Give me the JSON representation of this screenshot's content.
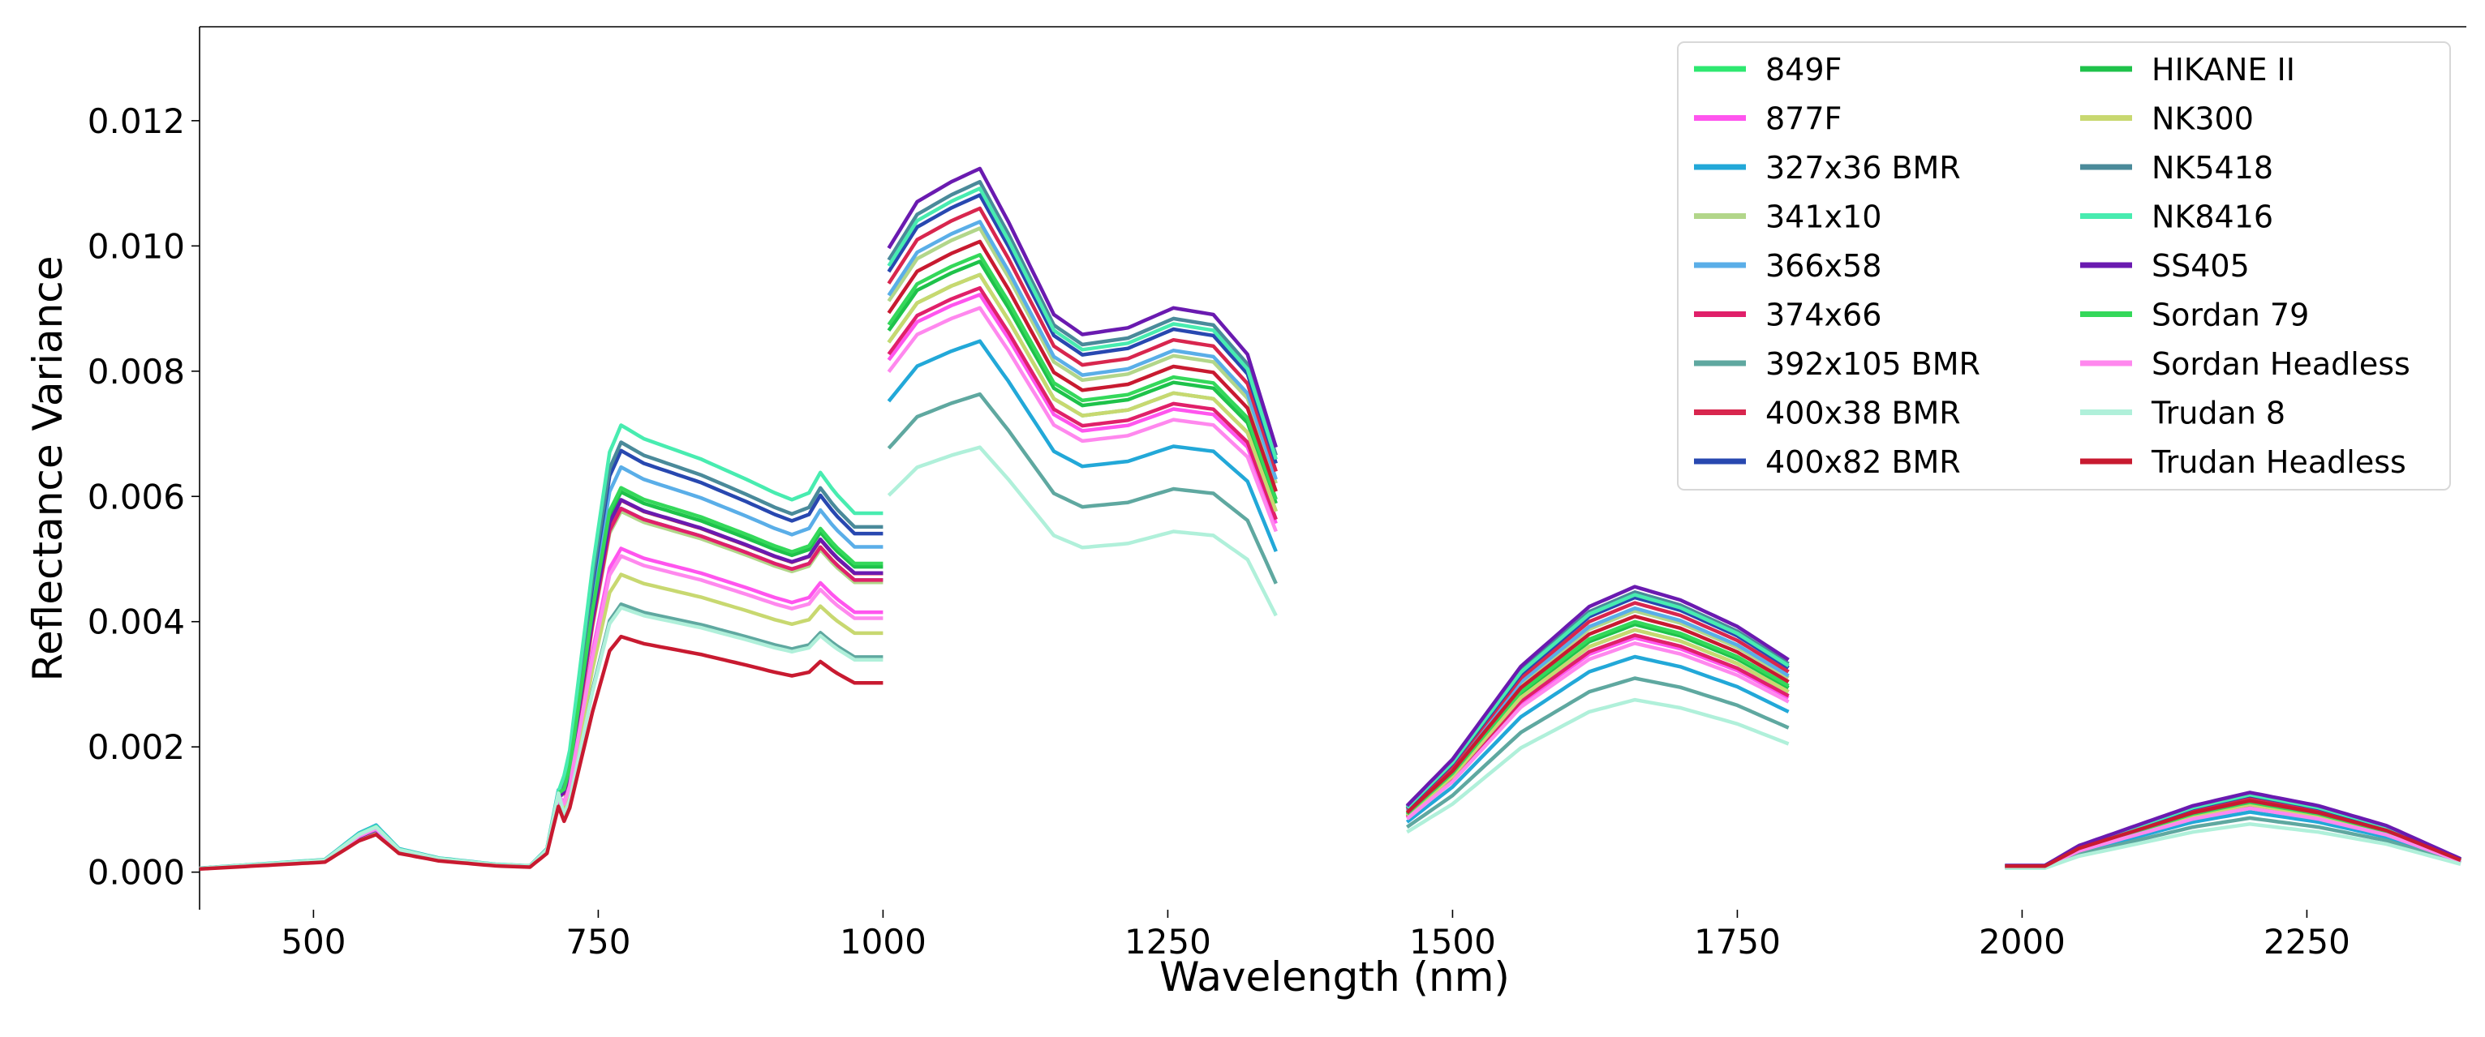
{
  "chart_data": {
    "type": "line",
    "xlabel": "Wavelength (nm)",
    "ylabel": "Reflectance Variance",
    "xlim": [
      400,
      2390
    ],
    "ylim": [
      -0.0006,
      0.0135
    ],
    "xticks": [
      500,
      750,
      1000,
      1250,
      1500,
      1750,
      2000,
      2250
    ],
    "yticks": [
      0.0,
      0.002,
      0.004,
      0.006,
      0.008,
      0.01,
      0.012
    ],
    "ytick_labels": [
      "0.000",
      "0.002",
      "0.004",
      "0.006",
      "0.008",
      "0.010",
      "0.012"
    ],
    "legend_position": "top-right",
    "legend_columns": 2,
    "segments": [
      [
        400,
        1000
      ],
      [
        1005,
        1345
      ],
      [
        1460,
        1795
      ],
      [
        1985,
        2385
      ]
    ],
    "series": [
      {
        "name": "849F",
        "color": "#2ee870",
        "level": 0.9,
        "vis": 1.0
      },
      {
        "name": "877F",
        "color": "#ff55ee",
        "level": 0.87,
        "vis": 0.9
      },
      {
        "name": "327x36 BMR",
        "color": "#22a8d8",
        "level": 0.8,
        "vis": 1.1
      },
      {
        "name": "341x10",
        "color": "#b2d68a",
        "level": 0.97,
        "vis": 0.9
      },
      {
        "name": "366x58",
        "color": "#5aaee8",
        "level": 0.98,
        "vis": 1.0
      },
      {
        "name": "374x66",
        "color": "#e0206a",
        "level": 0.88,
        "vis": 1.0
      },
      {
        "name": "392x105 BMR",
        "color": "#5fa8a0",
        "level": 0.72,
        "vis": 0.9
      },
      {
        "name": "400x38 BMR",
        "color": "#d8264e",
        "level": 1.0,
        "vis": 0.9
      },
      {
        "name": "400x82 BMR",
        "color": "#2848b0",
        "level": 1.02,
        "vis": 1.0
      },
      {
        "name": "HIKANE II",
        "color": "#1ec24a",
        "level": 0.92,
        "vis": 1.0
      },
      {
        "name": "NK300",
        "color": "#c8d870",
        "level": 0.9,
        "vis": 0.8
      },
      {
        "name": "NK5418",
        "color": "#4a8a9a",
        "level": 1.04,
        "vis": 1.0
      },
      {
        "name": "NK8416",
        "color": "#48ecb0",
        "level": 1.03,
        "vis": 1.05
      },
      {
        "name": "SS405",
        "color": "#6a1ab0",
        "level": 1.06,
        "vis": 0.85
      },
      {
        "name": "Sordan 79",
        "color": "#34d85a",
        "level": 0.93,
        "vis": 1.0
      },
      {
        "name": "Sordan Headless",
        "color": "#ff88ee",
        "level": 0.85,
        "vis": 0.9
      },
      {
        "name": "Trudan 8",
        "color": "#b0f0da",
        "level": 0.64,
        "vis": 1.0
      },
      {
        "name": "Trudan Headless",
        "color": "#c81a30",
        "level": 0.95,
        "vis": 0.6
      }
    ]
  }
}
